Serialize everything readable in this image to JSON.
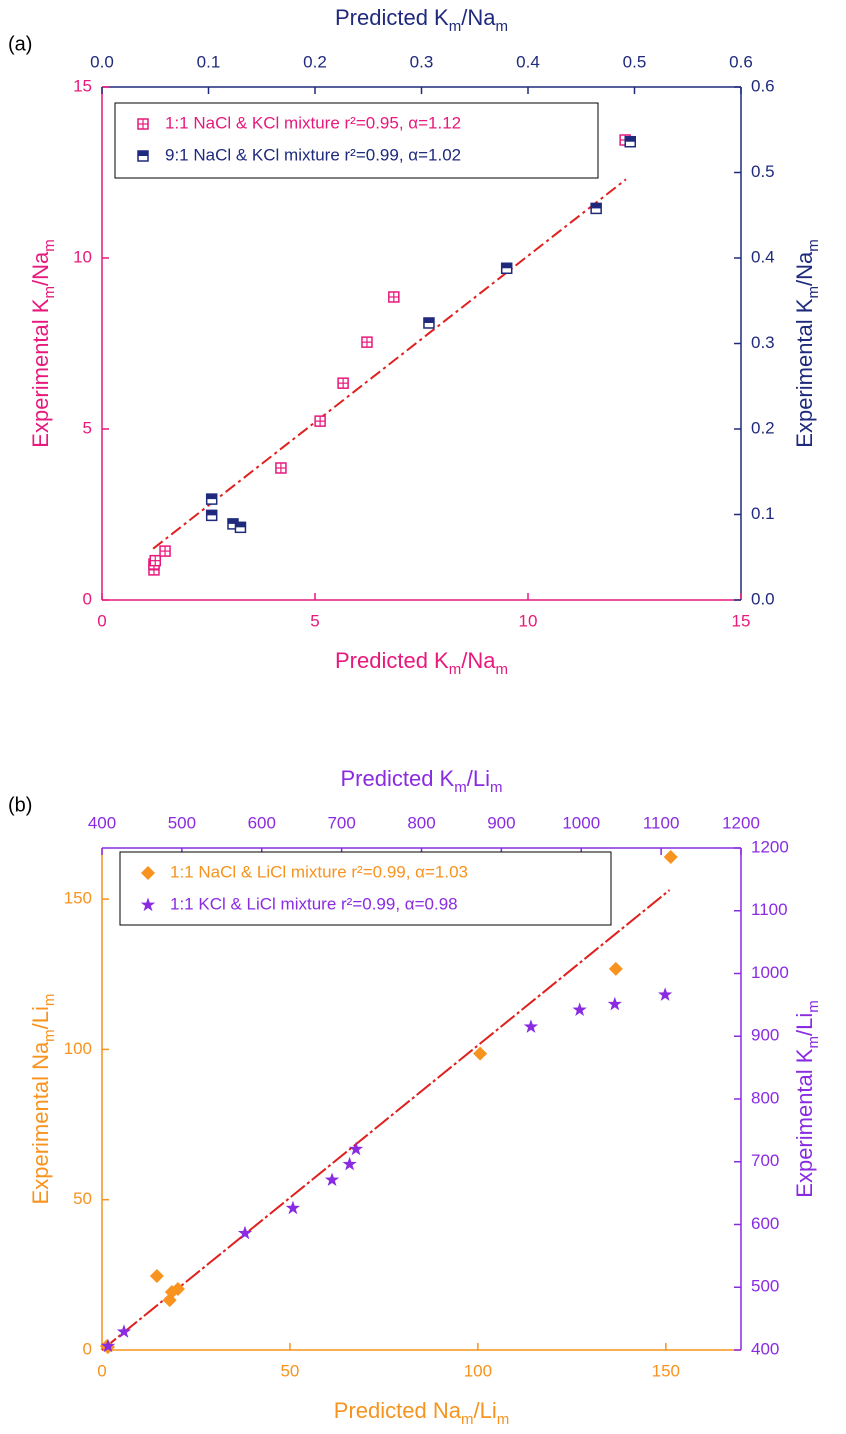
{
  "chart_data": [
    {
      "type": "scatter",
      "panel_label": "(a)",
      "x_label": [
        "Predicted K",
        "m",
        "/Na",
        "m"
      ],
      "y_label": [
        "Experimental K",
        "m",
        "/Na",
        "m"
      ],
      "x2_label": [
        "Predicted K",
        "m",
        "/Na",
        "m"
      ],
      "y2_label": [
        "Experimental K",
        "m",
        "/Na",
        "m"
      ],
      "xlim": [
        0,
        15
      ],
      "xticks": [
        0,
        5,
        10,
        15
      ],
      "ylim": [
        0,
        15
      ],
      "yticks": [
        0,
        5,
        10,
        15
      ],
      "x2lim": [
        0,
        0.6
      ],
      "x2ticks": [
        {
          "value": 0,
          "label": "0.0"
        },
        0.1,
        0.2,
        0.3,
        0.4,
        0.5,
        0.6
      ],
      "y2lim": [
        0,
        0.6
      ],
      "y2ticks": [
        {
          "value": 0,
          "label": "0.0"
        },
        0.1,
        0.2,
        0.3,
        0.4,
        0.5,
        0.6
      ],
      "legend": "upper left",
      "series": [
        {
          "name": "1:1 NaCl & KCl mixture r²=0.95, α=1.12",
          "color": "#e8197c",
          "marker": "crossed-square",
          "x": [
            1.22,
            1.22,
            1.25,
            1.48,
            4.2,
            5.12,
            5.66,
            6.22,
            6.85,
            12.28
          ],
          "values": [
            0.88,
            1.05,
            1.15,
            1.43,
            3.86,
            5.23,
            6.34,
            7.54,
            8.86,
            13.45
          ]
        },
        {
          "name": "9:1 NaCl & KCl mixture r²=0.99, α=1.02",
          "color": "#1f2a7c",
          "marker": "half-square",
          "axis": "y2",
          "x": [
            0.103,
            0.103,
            0.123,
            0.13,
            0.307,
            0.38,
            0.464,
            0.496
          ],
          "values": [
            0.118,
            0.099,
            0.089,
            0.085,
            0.324,
            0.388,
            0.458,
            0.536
          ]
        }
      ],
      "fit": {
        "color": "#e0201f",
        "x": [
          1.2,
          12.3
        ],
        "y": [
          1.5,
          12.3
        ]
      }
    },
    {
      "type": "scatter",
      "panel_label": "(b)",
      "x_label": [
        "Predicted Na",
        "m",
        "/Li",
        "m"
      ],
      "y_label": [
        "Experimental Na",
        "m",
        "/Li",
        "m"
      ],
      "x2_label": [
        "Predicted K",
        "m",
        "/Li",
        "m"
      ],
      "y2_label": [
        "Experimental K",
        "m",
        "/Li",
        "m"
      ],
      "xlim": [
        0,
        170
      ],
      "xticks": [
        0,
        50,
        100,
        150
      ],
      "ylim": [
        0,
        167
      ],
      "yticks": [
        0,
        50,
        100,
        150
      ],
      "x2lim": [
        400,
        1200
      ],
      "x2ticks": [
        400,
        500,
        600,
        700,
        800,
        900,
        1000,
        1100,
        1200
      ],
      "y2lim": [
        400,
        1200
      ],
      "y2ticks": [
        400,
        500,
        600,
        700,
        800,
        900,
        1000,
        1100,
        1200
      ],
      "legend": "upper left",
      "series": [
        {
          "name": "1:1 NaCl & LiCl mixture r²=0.99, α=1.03",
          "color": "#f7931e",
          "marker": "diamond",
          "x": [
            1.3,
            1.6,
            14.6,
            18,
            18.6,
            20.2,
            100.6,
            136.7,
            151.3
          ],
          "values": [
            1.3,
            1.0,
            24.6,
            16.6,
            19.3,
            20.3,
            98.6,
            126.8,
            164
          ]
        },
        {
          "name": "1:1 KCl & LiCl mixture r²=0.99, α=0.98",
          "color": "#8a2be2",
          "marker": "star",
          "axis": "y2",
          "x": [
            407.5,
            427.5,
            579,
            639,
            688,
            710,
            718,
            937,
            998,
            1042,
            1105
          ],
          "values": [
            406,
            429,
            586,
            626,
            671,
            696,
            720,
            915,
            942,
            951,
            966
          ]
        }
      ],
      "fit": {
        "color": "#e0201f",
        "x": [
          0,
          151
        ],
        "y": [
          0,
          153
        ]
      }
    }
  ]
}
